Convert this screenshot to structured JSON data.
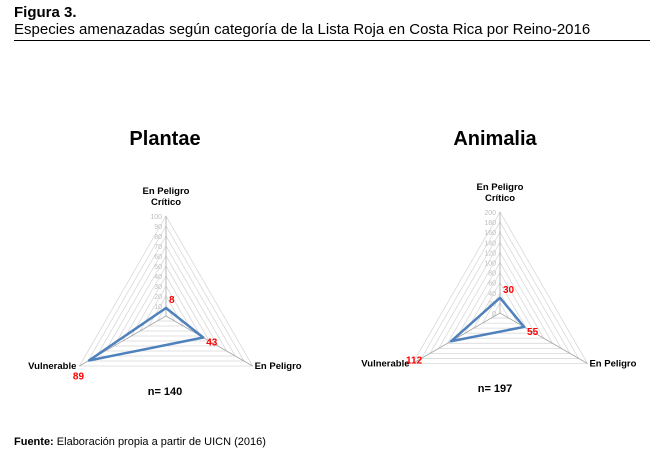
{
  "header": {
    "figure": "Figura 3.",
    "title": "Especies amenazadas según categoría de la Lista Roja en Costa Rica por Reino-2016"
  },
  "source": {
    "label": "Fuente:",
    "text": " Elaboración propia a partir de UICN (2016)"
  },
  "colors": {
    "series": "#4f81bd",
    "data_label": "#ff0000",
    "grid": "#d9d9d9",
    "tick": "#bfbfbf"
  },
  "chart_data": [
    {
      "type": "radar",
      "title": "Plantae",
      "axes": [
        "En Peligro Crítico",
        "En Peligro",
        "Vulnerable"
      ],
      "axis_label_lines": [
        [
          "En Peligro",
          "Crítico"
        ],
        [
          "En Peligro"
        ],
        [
          "Vulnerable"
        ]
      ],
      "values": [
        8,
        43,
        89
      ],
      "rlim": [
        0,
        100
      ],
      "ticks": [
        10,
        20,
        30,
        40,
        50,
        60,
        70,
        80,
        90,
        100
      ],
      "note": "n= 140",
      "grid": true
    },
    {
      "type": "radar",
      "title": "Animalia",
      "axes": [
        "En Peligro Crítico",
        "En Peligro",
        "Vulnerable"
      ],
      "axis_label_lines": [
        [
          "En Peligro",
          "Crítico"
        ],
        [
          "En Peligro"
        ],
        [
          "Vulnerable"
        ]
      ],
      "values": [
        30,
        55,
        112
      ],
      "rlim": [
        0,
        200
      ],
      "ticks": [
        0,
        20,
        40,
        60,
        80,
        100,
        120,
        140,
        160,
        180,
        200
      ],
      "note": "n= 197",
      "grid": true
    }
  ]
}
